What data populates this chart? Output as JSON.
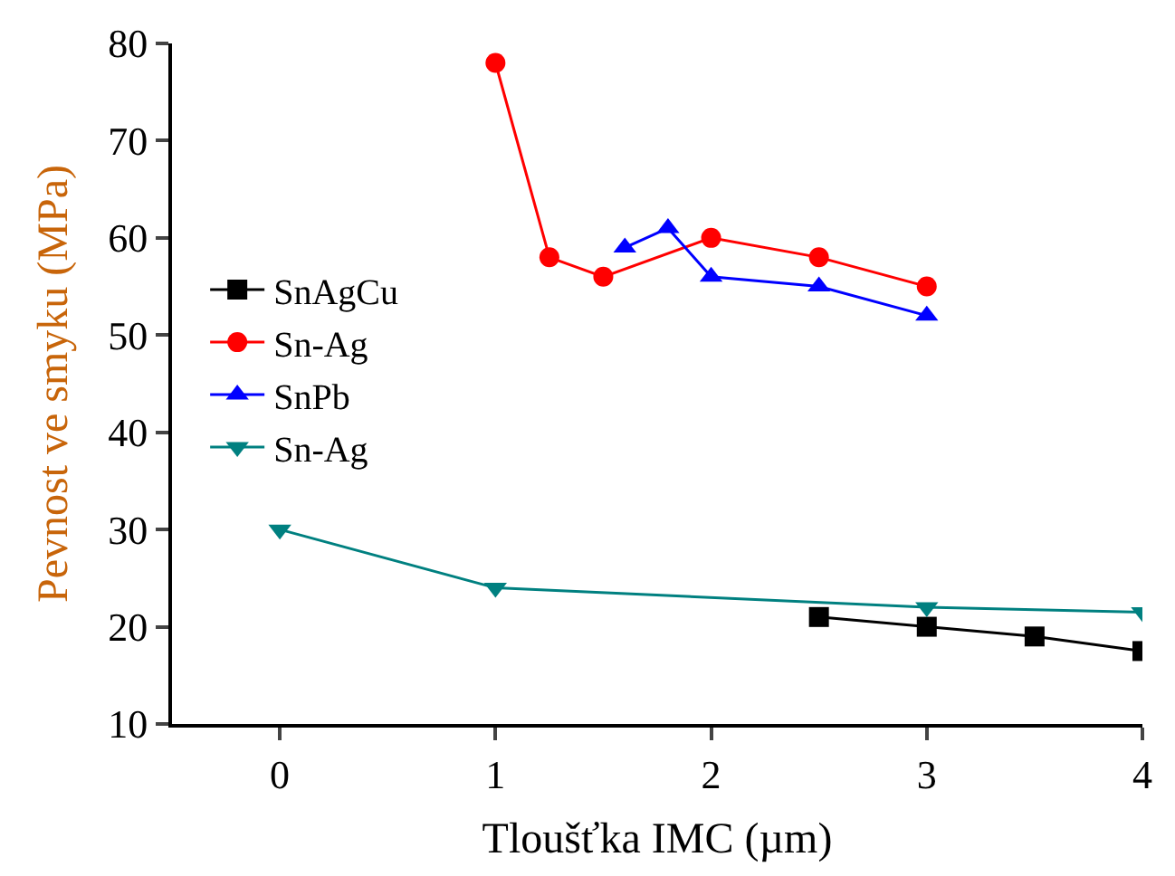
{
  "chart_data": {
    "type": "line",
    "xlabel": "Tloušťka IMC (µm)",
    "ylabel": "Pevnost ve smyku (MPa)",
    "xlim": [
      -0.5,
      4
    ],
    "xticks": [
      0,
      1,
      2,
      3,
      4
    ],
    "ylim": [
      10,
      80
    ],
    "yticks": [
      10,
      20,
      30,
      40,
      50,
      60,
      70,
      80
    ],
    "legend": "left",
    "series": [
      {
        "name": "SnAgCu",
        "color": "#000000",
        "marker": "square",
        "x": [
          2.5,
          3,
          3.5,
          4
        ],
        "values": [
          21,
          20,
          19,
          17.5
        ]
      },
      {
        "name": "Sn-Ag",
        "color": "#ff0000",
        "marker": "circle",
        "x": [
          1,
          1.25,
          1.5,
          2,
          2.5,
          3
        ],
        "values": [
          78,
          58,
          56,
          60,
          58,
          55
        ]
      },
      {
        "name": "SnPb",
        "color": "#0000ff",
        "marker": "triangle",
        "x": [
          1.6,
          1.8,
          2,
          2.5,
          3
        ],
        "values": [
          59,
          61,
          56,
          55,
          52
        ]
      },
      {
        "name": "Sn-Ag",
        "color": "#008080",
        "marker": "triangle-down",
        "x": [
          0,
          1,
          3,
          4
        ],
        "values": [
          30,
          24,
          22,
          21.5
        ]
      }
    ]
  }
}
